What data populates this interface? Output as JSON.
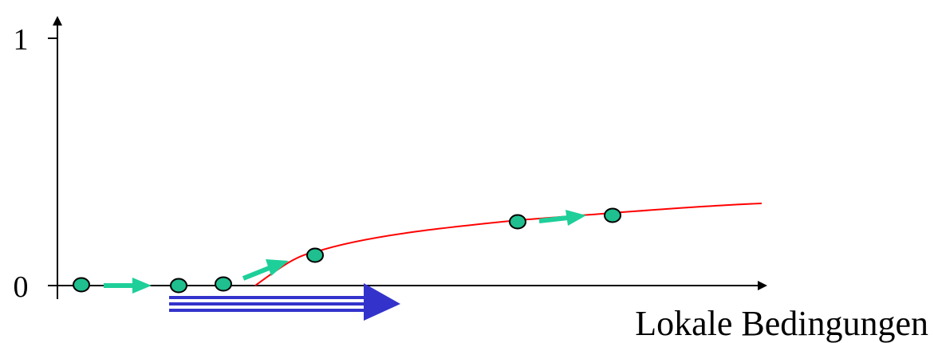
{
  "diagram": {
    "y_ticks": [
      {
        "label": "1",
        "value": 1
      },
      {
        "label": "0",
        "value": 0
      }
    ],
    "x_axis_label": "Lokale Bedingungen",
    "colors": {
      "axis": "#000000",
      "curve": "#ff0000",
      "point_fill": "#1fbf8f",
      "point_stroke": "#000000",
      "step_arrow": "#1ecf9a",
      "main_arrow": "#3333cc"
    }
  }
}
